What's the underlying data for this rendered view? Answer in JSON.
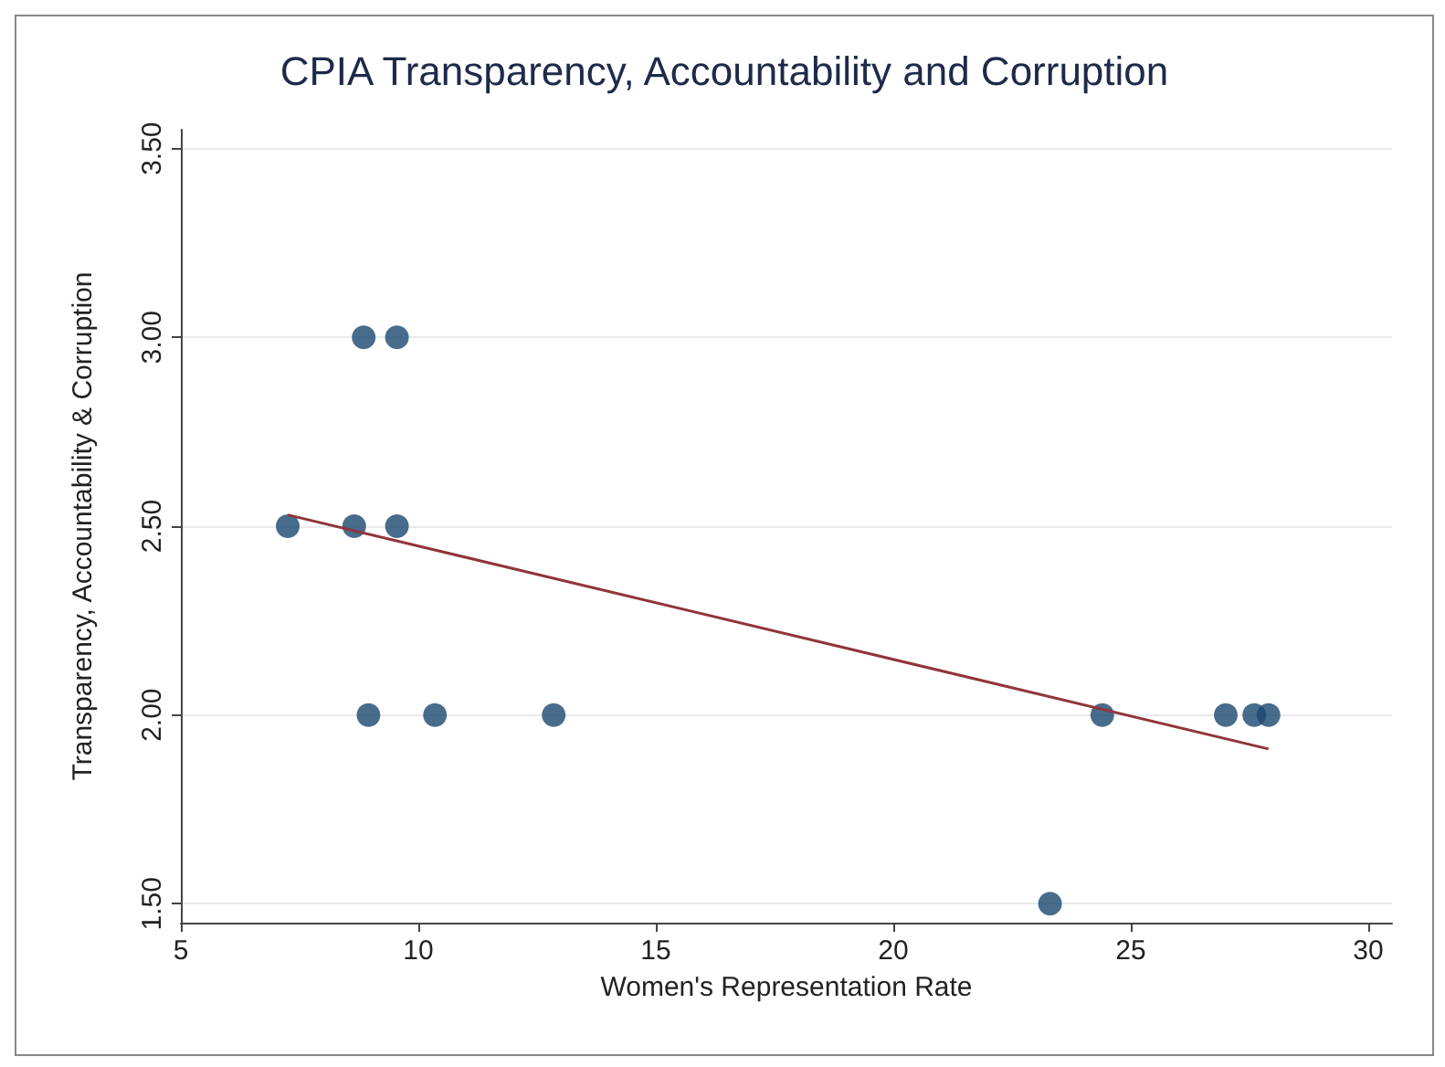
{
  "chart_data": {
    "type": "scatter",
    "title": "CPIA Transparency, Accountability and Corruption",
    "xlabel": "Women's Representation Rate",
    "ylabel": "Transparency, Accountability & Corruption",
    "xlim": [
      5,
      30.5
    ],
    "xticks": [
      5,
      10,
      15,
      20,
      25,
      30
    ],
    "ylim": [
      1.45,
      3.55
    ],
    "yticks": [
      {
        "value": 1.5,
        "label": "1.50"
      },
      {
        "value": 2,
        "label": "2.00"
      },
      {
        "value": 2.5,
        "label": "2.50"
      },
      {
        "value": 3,
        "label": "3.00"
      },
      {
        "value": 3.5,
        "label": "3.50"
      }
    ],
    "grid": "y",
    "marker": "circle",
    "series": [
      {
        "color": "#1a476f",
        "x": [
          7.25,
          8.65,
          8.85,
          9.55,
          9.55,
          8.95,
          10.35,
          12.85,
          24.4,
          27.0,
          27.6,
          27.9,
          23.3
        ],
        "values": [
          2.5,
          2.5,
          3.0,
          3.0,
          2.5,
          2.0,
          2.0,
          2.0,
          2.0,
          2.0,
          2.0,
          2.0,
          1.5
        ]
      },
      {
        "type": "line",
        "color": "#90353b",
        "marker": "none",
        "x": [
          7.25,
          27.9
        ],
        "values": [
          2.53,
          1.91
        ]
      }
    ]
  }
}
